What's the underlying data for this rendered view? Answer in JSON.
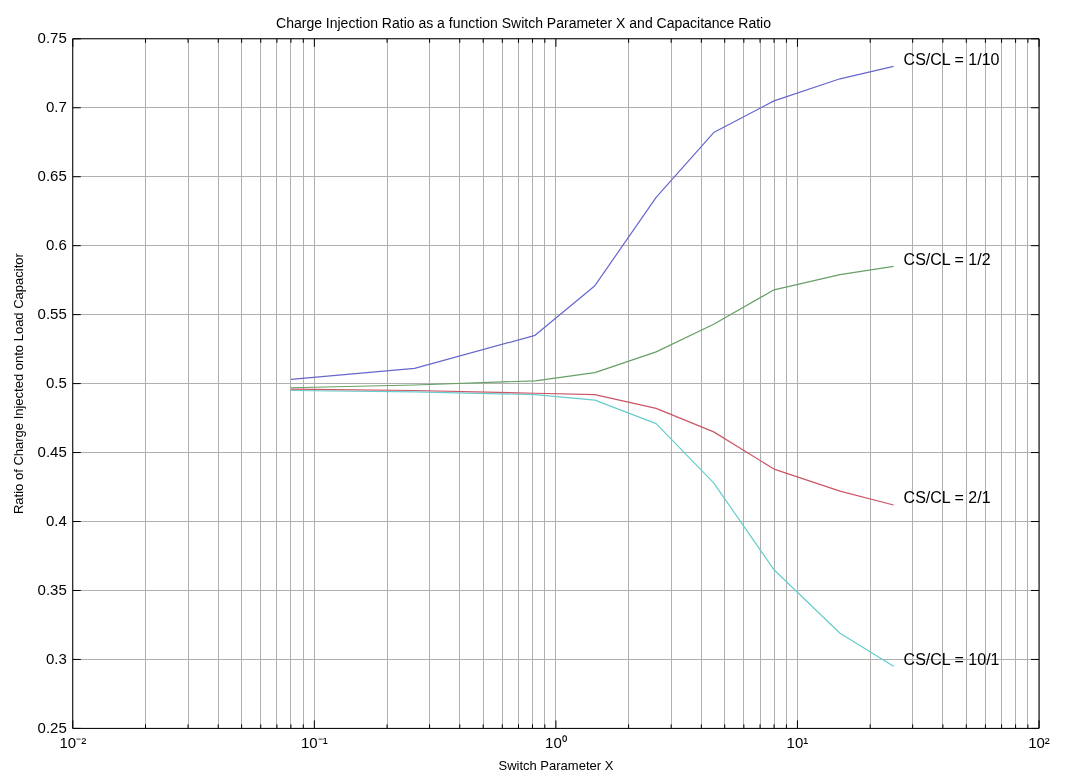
{
  "chart_data": {
    "type": "line",
    "title": "Charge Injection Ratio as a function Switch Parameter X and Capacitance Ratio",
    "xlabel": "Switch Parameter X",
    "ylabel": "Ratio of Charge Injected onto Load Capacitor",
    "x": [
      0.08,
      0.26,
      0.82,
      1.45,
      2.6,
      4.5,
      8,
      15,
      25
    ],
    "series": [
      {
        "name": "CS/CL = 1/10",
        "color": "#6666cc",
        "values": [
          0.503,
          0.511,
          0.535,
          0.571,
          0.635,
          0.682,
          0.705,
          0.721,
          0.73
        ]
      },
      {
        "name": "CS/CL = 1/2",
        "color": "#66a066",
        "values": [
          0.497,
          0.499,
          0.502,
          0.508,
          0.523,
          0.543,
          0.568,
          0.579,
          0.585
        ]
      },
      {
        "name": "CS/CL = 2/1",
        "color": "#cc5566",
        "values": [
          0.496,
          0.495,
          0.493,
          0.492,
          0.482,
          0.465,
          0.438,
          0.422,
          0.412
        ]
      },
      {
        "name": "CS/CL = 10/1",
        "color": "#66cccc",
        "values": [
          0.495,
          0.494,
          0.492,
          0.488,
          0.471,
          0.428,
          0.365,
          0.319,
          0.295
        ]
      }
    ],
    "log": "x",
    "xlim": [
      0.01,
      100
    ],
    "xticks": [
      {
        "value": 0.01,
        "label": "10⁻²"
      },
      {
        "value": 0.02,
        "label": null
      },
      {
        "value": 0.03,
        "label": null
      },
      {
        "value": 0.04,
        "label": null
      },
      {
        "value": 0.05,
        "label": null
      },
      {
        "value": 0.06,
        "label": null
      },
      {
        "value": 0.07,
        "label": null
      },
      {
        "value": 0.08,
        "label": null
      },
      {
        "value": 0.09,
        "label": null
      },
      {
        "value": 0.1,
        "label": "10⁻¹"
      },
      {
        "value": 0.2,
        "label": null
      },
      {
        "value": 0.3,
        "label": null
      },
      {
        "value": 0.4,
        "label": null
      },
      {
        "value": 0.5,
        "label": null
      },
      {
        "value": 0.6,
        "label": null
      },
      {
        "value": 0.7,
        "label": null
      },
      {
        "value": 0.8,
        "label": null
      },
      {
        "value": 0.9,
        "label": null
      },
      {
        "value": 1,
        "label": "10⁰"
      },
      {
        "value": 2,
        "label": null
      },
      {
        "value": 3,
        "label": null
      },
      {
        "value": 4,
        "label": null
      },
      {
        "value": 5,
        "label": null
      },
      {
        "value": 6,
        "label": null
      },
      {
        "value": 7,
        "label": null
      },
      {
        "value": 8,
        "label": null
      },
      {
        "value": 9,
        "label": null
      },
      {
        "value": 10,
        "label": "10¹"
      },
      {
        "value": 20,
        "label": null
      },
      {
        "value": 30,
        "label": null
      },
      {
        "value": 40,
        "label": null
      },
      {
        "value": 50,
        "label": null
      },
      {
        "value": 60,
        "label": null
      },
      {
        "value": 70,
        "label": null
      },
      {
        "value": 80,
        "label": null
      },
      {
        "value": 90,
        "label": null
      },
      {
        "value": 100,
        "label": "10²"
      }
    ],
    "ylim": [
      0.25,
      0.75
    ],
    "yticks": [
      0.25,
      0.3,
      0.35,
      0.4,
      0.45,
      0.5,
      0.55,
      0.6,
      0.65,
      0.7,
      0.75
    ],
    "grid": true,
    "legend": false,
    "marker": "none",
    "line_style": "solid"
  }
}
